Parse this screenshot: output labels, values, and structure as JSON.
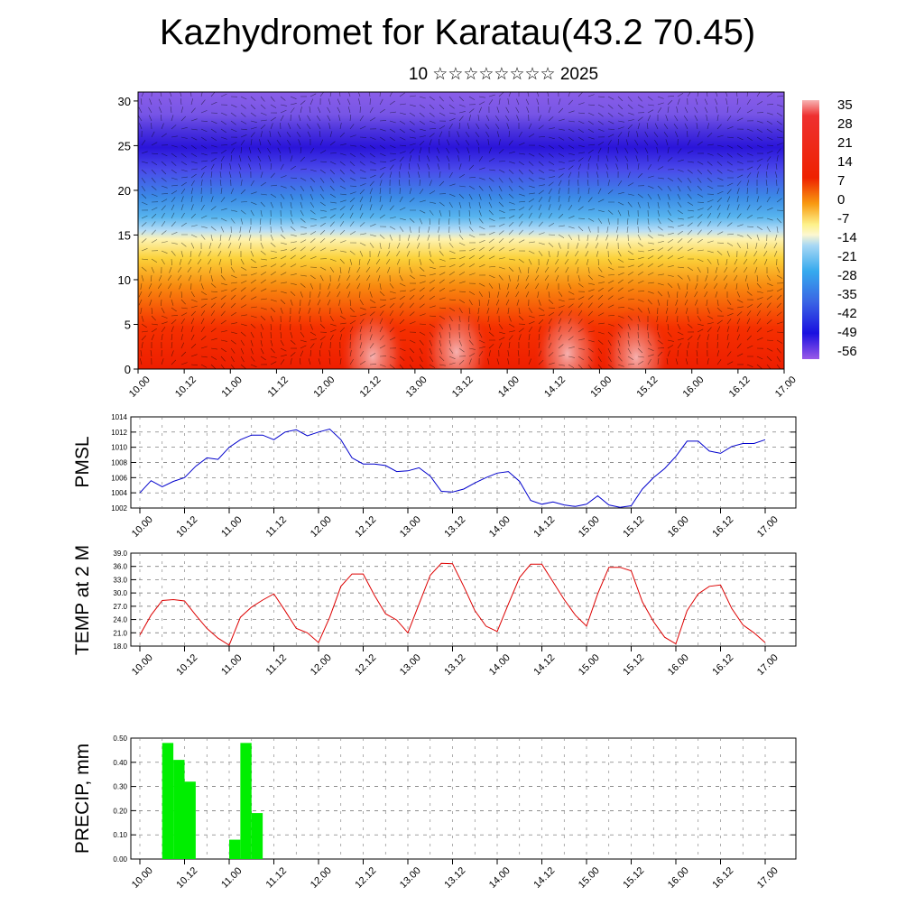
{
  "title": "Kazhydromet for Karatau(43.2 70.45)",
  "subtitle": "10 ☆☆☆☆☆☆☆☆ 2025",
  "colors": {
    "pmsl_line": "#0000cc",
    "temp_line": "#dd0000",
    "precip_bar": "#00ee00"
  },
  "chart_data": [
    {
      "type": "heatmap",
      "description_key": "cross-section",
      "x_tick_labels": [
        "10.00",
        "10.12",
        "11.00",
        "11.12",
        "12.00",
        "12.12",
        "13.00",
        "13.12",
        "14.00",
        "14.12",
        "15.00",
        "15.12",
        "16.00",
        "16.12",
        "17.00"
      ],
      "y_tick_labels": [
        "0",
        "5",
        "10",
        "15",
        "20",
        "25",
        "30"
      ],
      "ylim": [
        0,
        31
      ],
      "colorbar_labels": [
        "35",
        "28",
        "21",
        "14",
        "7",
        "0",
        "-7",
        "-14",
        "-21",
        "-28",
        "-35",
        "-42",
        "-49",
        "-56"
      ]
    },
    {
      "type": "line",
      "ylabel": "PMSL",
      "ylim": [
        1002,
        1014
      ],
      "y_tick_labels": [
        "1002",
        "1004",
        "1006",
        "1008",
        "1010",
        "1012",
        "1014"
      ],
      "x_tick_labels": [
        "10.00",
        "10.12",
        "11.00",
        "11.12",
        "12.00",
        "12.12",
        "13.00",
        "13.12",
        "14.00",
        "14.12",
        "15.00",
        "15.12",
        "16.00",
        "16.12",
        "17.00"
      ],
      "x": [
        0,
        3,
        6,
        9,
        12,
        15,
        18,
        21,
        24,
        27,
        30,
        33,
        36,
        39,
        42,
        45,
        48,
        51,
        54,
        57,
        60,
        63,
        66,
        69,
        72,
        75,
        78,
        81,
        84,
        87,
        90,
        93,
        96,
        99,
        102,
        105,
        108,
        111,
        114,
        117,
        120,
        123,
        126,
        129,
        132,
        135,
        138,
        141,
        144,
        147,
        150,
        153,
        156,
        159,
        162,
        165,
        168
      ],
      "series": [
        {
          "values": [
            1004.0,
            1005.6,
            1004.8,
            1005.5,
            1006.0,
            1007.5,
            1008.6,
            1008.4,
            1010.0,
            1011.0,
            1011.6,
            1011.6,
            1011.0,
            1012.0,
            1012.3,
            1011.5,
            1012.0,
            1012.4,
            1011.0,
            1008.6,
            1007.8,
            1007.8,
            1007.6,
            1006.8,
            1006.9,
            1007.3,
            1006.2,
            1004.2,
            1004.1,
            1004.5,
            1005.3,
            1006.0,
            1006.6,
            1006.8,
            1005.5,
            1003.0,
            1002.5,
            1002.8,
            1002.4,
            1002.2,
            1002.5,
            1003.6,
            1002.4,
            1002.1,
            1002.3,
            1004.5,
            1006.0,
            1007.2,
            1008.8,
            1010.8,
            1010.8,
            1009.5,
            1009.2,
            1010.1,
            1010.5,
            1010.5,
            1011.0
          ]
        }
      ]
    },
    {
      "type": "line",
      "ylabel": "TEMP at 2 M",
      "ylim": [
        18.0,
        39.0
      ],
      "y_tick_labels": [
        "18.0",
        "21.0",
        "24.0",
        "27.0",
        "30.0",
        "33.0",
        "36.0",
        "39.0"
      ],
      "x_tick_labels": [
        "10.00",
        "10.12",
        "11.00",
        "11.12",
        "12.00",
        "12.12",
        "13.00",
        "13.12",
        "14.00",
        "14.12",
        "15.00",
        "15.12",
        "16.00",
        "16.12",
        "17.00"
      ],
      "x": [
        0,
        3,
        6,
        9,
        12,
        15,
        18,
        21,
        24,
        27,
        30,
        33,
        36,
        39,
        42,
        45,
        48,
        51,
        54,
        57,
        60,
        63,
        66,
        69,
        72,
        75,
        78,
        81,
        84,
        87,
        90,
        93,
        96,
        99,
        102,
        105,
        108,
        111,
        114,
        117,
        120,
        123,
        126,
        129,
        132,
        135,
        138,
        141,
        144,
        147,
        150,
        153,
        156,
        159,
        162,
        165,
        168
      ],
      "series": [
        {
          "values": [
            20.5,
            25.0,
            28.3,
            28.5,
            28.2,
            25.0,
            22.0,
            19.8,
            18.2,
            24.5,
            26.8,
            28.4,
            29.8,
            26.0,
            22.0,
            21.0,
            18.8,
            24.5,
            31.5,
            34.3,
            34.3,
            29.5,
            25.3,
            23.9,
            21.0,
            27.5,
            34.0,
            36.7,
            36.6,
            31.5,
            26.0,
            22.5,
            21.3,
            27.5,
            33.5,
            36.5,
            36.5,
            32.5,
            28.5,
            25.0,
            22.5,
            29.8,
            35.8,
            35.8,
            35.0,
            28.0,
            23.5,
            20.0,
            18.5,
            26.0,
            29.8,
            31.5,
            31.8,
            26.5,
            22.8,
            21.0,
            18.8
          ]
        }
      ]
    },
    {
      "type": "bar",
      "ylabel": "PRECIP, mm",
      "ylim": [
        0,
        0.5
      ],
      "y_tick_labels": [
        "0.00",
        "0.10",
        "0.20",
        "0.30",
        "0.40",
        "0.50"
      ],
      "x_tick_labels": [
        "10.00",
        "10.12",
        "11.00",
        "11.12",
        "12.00",
        "12.12",
        "13.00",
        "13.12",
        "14.00",
        "14.12",
        "15.00",
        "15.12",
        "16.00",
        "16.12",
        "17.00"
      ],
      "x": [
        6,
        9,
        12,
        24,
        27,
        30
      ],
      "values": [
        0.48,
        0.41,
        0.32,
        0.08,
        0.48,
        0.19
      ]
    }
  ]
}
